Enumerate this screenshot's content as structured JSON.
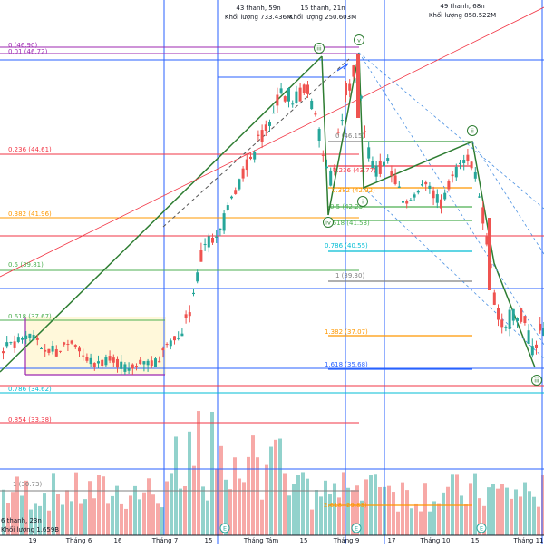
{
  "chart_data": {
    "type": "candlestick",
    "x_tick_labels": [
      "19",
      "Tháng 6",
      "16",
      "Tháng 7",
      "15",
      "Tháng Tám",
      "15",
      "Tháng 9",
      "17",
      "Tháng 10",
      "15",
      "Tháng 11"
    ],
    "fib_levels_left": [
      {
        "label": "0 (46.90)",
        "color": "#9c27b0"
      },
      {
        "label": "0.01 (46.72)",
        "color": "#9c27b0"
      },
      {
        "label": "0.236 (44.61)",
        "color": "#f23645"
      },
      {
        "label": "0.382 (41.96)",
        "color": "#ff9800"
      },
      {
        "label": "0.5 (39.81)",
        "color": "#4caf50"
      },
      {
        "label": "0.618 (37.67)",
        "color": "#4caf50"
      },
      {
        "label": "0.786 (34.62)",
        "color": "#00bcd4"
      },
      {
        "label": "0.854 (33.38)",
        "color": "#f23645"
      },
      {
        "label": "1 (30.73)",
        "color": "#808080"
      }
    ],
    "fib_levels_right": [
      {
        "label": "0 (46.15)",
        "color": "#808080"
      },
      {
        "label": "0.236 (43.77)",
        "color": "#f23645"
      },
      {
        "label": "0.382 (42.92)",
        "color": "#ff9800"
      },
      {
        "label": "0.5 (42.23)",
        "color": "#4caf50"
      },
      {
        "label": "0.618 (41.53)",
        "color": "#4caf50"
      },
      {
        "label": "0.786 (40.55)",
        "color": "#00bcd4"
      },
      {
        "label": "1 (39.30)",
        "color": "#808080"
      },
      {
        "label": "1.382 (37.07)",
        "color": "#ff9800"
      },
      {
        "label": "1.618 (35.68)",
        "color": "#2962ff"
      },
      {
        "label": "2.618 (29.83)",
        "color": "#ff9800"
      }
    ],
    "range_stats": [
      {
        "line1": "43 thanh, 59n",
        "line2": "Khối lượng 733.436M"
      },
      {
        "line1": "15 thanh, 21n",
        "line2": "Khối lượng 250.603M"
      },
      {
        "line1": "49 thanh, 68n",
        "line2": "Khối lượng 858.522M"
      }
    ],
    "bottom_left_stats": {
      "line1": "6 thanh, 23n",
      "line2": "Khối lượng 1.659B"
    },
    "wave_labels": [
      "iii",
      "v",
      "i",
      "ii",
      "iii",
      "iv"
    ],
    "event_markers": [
      "E",
      "E",
      "E"
    ]
  }
}
